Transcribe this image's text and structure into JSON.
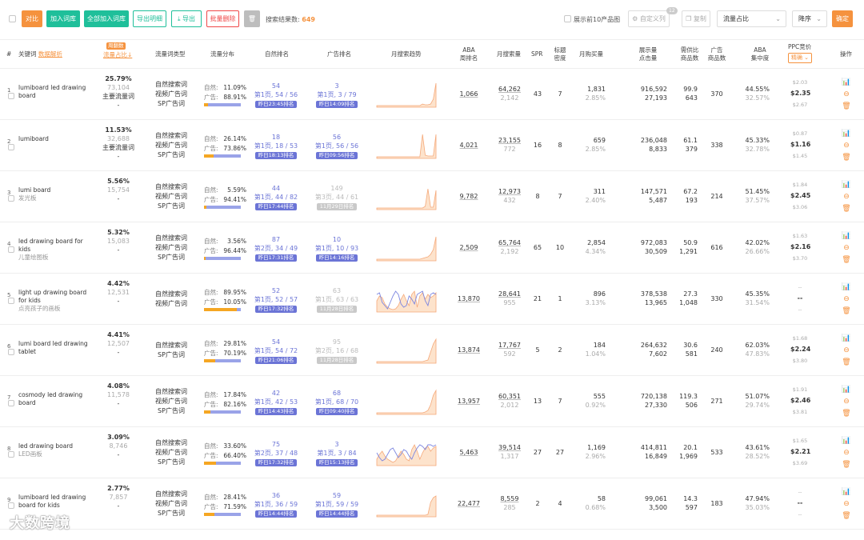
{
  "toolbar": {
    "compare": "对比",
    "add_lib": "加入词库",
    "add_all_lib": "全部加入词库",
    "export_detail": "导出明细",
    "export": "导出",
    "batch_delete": "批量删除",
    "result_label": "搜索结果数:",
    "result_count": "649",
    "top10_label": "展示前10产品图",
    "custom_col": "自定义列",
    "custom_col_badge": "12",
    "copy": "复制",
    "sort_field": "流量占比",
    "sort_order": "降序",
    "confirm": "确定"
  },
  "header": {
    "idx": "#",
    "keyword": "关键词",
    "keyword_link": "数据解析",
    "share_badge": "周翻数",
    "share": "流量占比",
    "type": "流量词类型",
    "dist": "流量分布",
    "organic_rank": "自然排名",
    "ad_rank": "广告排名",
    "trend": "月搜索趋势",
    "aba": "ABA\n周排名",
    "monthly_search": "月搜索量",
    "spr": "SPR",
    "title_density": "标题\n密度",
    "monthly_buy": "月购买量",
    "impr_click": "展示量\n点击量",
    "supply_ratio": "需供比\n商品数",
    "ad_products": "广告\n商品数",
    "aba_conc": "ABA\n集中度",
    "ppc": "PPC竞价",
    "ppc_select": "精确",
    "ops": "操作"
  },
  "labels": {
    "organic": "自然:",
    "ad": "广告:"
  },
  "rows": [
    {
      "idx": "1",
      "kw": "lumiboard led drawing board",
      "kw_cn": "",
      "share": "25.79%",
      "share_n": "73,104",
      "share_tag": "主要流量词",
      "share_dash": "-",
      "types": [
        "自然搜索词",
        "视频广告词",
        "SP广告词"
      ],
      "org_pct": "11.09%",
      "ad_pct": "88.91%",
      "org_frac": 0.1109,
      "org_rank": "54",
      "org_page": "第1页, 54 / 56",
      "org_tag": "昨日23:45排名",
      "org_grey": false,
      "ad_rank": "3",
      "ad_page": "第1页, 3 / 79",
      "ad_tag": "昨日14:09排名",
      "ad_grey": false,
      "trend": [
        2,
        2,
        2,
        2,
        2,
        2,
        2,
        2,
        2,
        2,
        2,
        2,
        2,
        2,
        2,
        2,
        2,
        4,
        3,
        3,
        4,
        10,
        30
      ],
      "trend_blue": null,
      "aba": "1,066",
      "ms": "64,262",
      "ms2": "2,142",
      "spr": "43",
      "td": "7",
      "buy": "1,831",
      "buy2": "2.85%",
      "impr": "916,592",
      "click": "27,193",
      "ratio": "99.9",
      "goods": "643",
      "adg": "370",
      "conc": "44.55%",
      "conc2": "32.57%",
      "ppc1": "$2.03",
      "ppc2": "$2.35",
      "ppc3": "$2.67"
    },
    {
      "idx": "2",
      "kw": "lumiboard",
      "kw_cn": "",
      "share": "11.53%",
      "share_n": "32,688",
      "share_tag": "主要流量词",
      "share_dash": "-",
      "types": [
        "自然搜索词",
        "视频广告词",
        "SP广告词"
      ],
      "org_pct": "26.14%",
      "ad_pct": "73.86%",
      "org_frac": 0.2614,
      "org_rank": "18",
      "org_page": "第1页, 18 / 53",
      "org_tag": "昨日18:13排名",
      "org_grey": false,
      "ad_rank": "56",
      "ad_page": "第1页, 56 / 56",
      "ad_tag": "昨日09:56排名",
      "ad_grey": false,
      "trend": [
        2,
        2,
        2,
        2,
        2,
        2,
        2,
        2,
        2,
        2,
        2,
        2,
        2,
        2,
        2,
        2,
        2,
        30,
        4,
        3,
        3,
        3,
        30
      ],
      "trend_blue": null,
      "aba": "4,021",
      "ms": "23,155",
      "ms2": "772",
      "spr": "16",
      "td": "8",
      "buy": "659",
      "buy2": "2.85%",
      "impr": "236,048",
      "click": "8,833",
      "ratio": "61.1",
      "goods": "379",
      "adg": "338",
      "conc": "45.33%",
      "conc2": "32.78%",
      "ppc1": "$0.87",
      "ppc2": "$1.16",
      "ppc3": "$1.45"
    },
    {
      "idx": "3",
      "kw": "lumi board",
      "kw_cn": "发光板",
      "share": "5.56%",
      "share_n": "15,754",
      "share_tag": "",
      "share_dash": "-",
      "types": [
        "自然搜索词",
        "视频广告词",
        "SP广告词"
      ],
      "org_pct": "5.59%",
      "ad_pct": "94.41%",
      "org_frac": 0.0559,
      "org_rank": "44",
      "org_page": "第1页, 44 / 82",
      "org_tag": "昨日17:44排名",
      "org_grey": false,
      "ad_rank": "149",
      "ad_page": "第3页, 44 / 61",
      "ad_tag": "11月29日排名",
      "ad_grey": true,
      "trend": [
        2,
        2,
        2,
        2,
        2,
        2,
        2,
        2,
        2,
        2,
        2,
        2,
        2,
        2,
        2,
        2,
        2,
        2,
        4,
        26,
        3,
        3,
        24
      ],
      "trend_blue": null,
      "aba": "9,782",
      "ms": "12,973",
      "ms2": "432",
      "spr": "8",
      "td": "7",
      "buy": "311",
      "buy2": "2.40%",
      "impr": "147,571",
      "click": "5,487",
      "ratio": "67.2",
      "goods": "193",
      "adg": "214",
      "conc": "51.45%",
      "conc2": "37.57%",
      "ppc1": "$1.84",
      "ppc2": "$2.45",
      "ppc3": "$3.06"
    },
    {
      "idx": "4",
      "kw": "led drawing board for kids",
      "kw_cn": "儿童绘图板",
      "share": "5.32%",
      "share_n": "15,083",
      "share_tag": "",
      "share_dash": "-",
      "types": [
        "自然搜索词",
        "视频广告词",
        "SP广告词"
      ],
      "org_pct": "3.56%",
      "ad_pct": "96.44%",
      "org_frac": 0.0356,
      "org_rank": "87",
      "org_page": "第2页, 34 / 49",
      "org_tag": "昨日17:31排名",
      "org_grey": false,
      "ad_rank": "10",
      "ad_page": "第1页, 10 / 93",
      "ad_tag": "昨日14:16排名",
      "ad_grey": false,
      "trend": [
        2,
        2,
        2,
        2,
        2,
        2,
        2,
        2,
        2,
        2,
        2,
        2,
        2,
        2,
        2,
        2,
        2,
        3,
        4,
        5,
        8,
        14,
        30
      ],
      "trend_blue": null,
      "aba": "2,509",
      "ms": "65,764",
      "ms2": "2,192",
      "spr": "65",
      "td": "10",
      "buy": "2,854",
      "buy2": "4.34%",
      "impr": "972,083",
      "click": "30,509",
      "ratio": "50.9",
      "goods": "1,291",
      "adg": "616",
      "conc": "42.02%",
      "conc2": "26.66%",
      "ppc1": "$1.63",
      "ppc2": "$2.16",
      "ppc3": "$3.70"
    },
    {
      "idx": "5",
      "kw": "light up drawing board for kids",
      "kw_cn": "点亮孩子的画板",
      "share": "4.42%",
      "share_n": "12,531",
      "share_tag": "",
      "share_dash": "-",
      "types": [
        "自然搜索词",
        "视频广告词"
      ],
      "org_pct": "89.95%",
      "ad_pct": "10.05%",
      "org_frac": 0.8995,
      "org_rank": "52",
      "org_page": "第1页, 52 / 57",
      "org_tag": "昨日17:32排名",
      "org_grey": false,
      "ad_rank": "63",
      "ad_page": "第1页, 63 / 63",
      "ad_tag": "11月28日排名",
      "ad_grey": true,
      "trend": [
        14,
        20,
        18,
        10,
        6,
        4,
        3,
        4,
        8,
        16,
        22,
        14,
        8,
        22,
        26,
        6,
        20,
        24,
        16,
        22,
        18,
        20,
        24
      ],
      "trend_blue": [
        22,
        24,
        12,
        8,
        4,
        12,
        20,
        26,
        22,
        10,
        6,
        8,
        20,
        16,
        10,
        22,
        24,
        26,
        14,
        8,
        22,
        24,
        22
      ],
      "aba": "13,870",
      "ms": "28,641",
      "ms2": "955",
      "spr": "21",
      "td": "1",
      "buy": "896",
      "buy2": "3.13%",
      "impr": "378,538",
      "click": "13,965",
      "ratio": "27.3",
      "goods": "1,048",
      "adg": "330",
      "conc": "45.35%",
      "conc2": "31.54%",
      "ppc1": "--",
      "ppc2": "--",
      "ppc3": "--"
    },
    {
      "idx": "6",
      "kw": "lumi board led drawing tablet",
      "kw_cn": "",
      "share": "4.41%",
      "share_n": "12,507",
      "share_tag": "",
      "share_dash": "-",
      "types": [
        "自然搜索词",
        "SP广告词"
      ],
      "org_pct": "29.81%",
      "ad_pct": "70.19%",
      "org_frac": 0.2981,
      "org_rank": "54",
      "org_page": "第1页, 54 / 72",
      "org_tag": "昨日21:06排名",
      "org_grey": false,
      "ad_rank": "95",
      "ad_page": "第2页, 16 / 68",
      "ad_tag": "11月28日排名",
      "ad_grey": true,
      "trend": [
        2,
        2,
        2,
        2,
        2,
        2,
        2,
        2,
        2,
        2,
        2,
        2,
        2,
        2,
        2,
        2,
        2,
        2,
        3,
        4,
        14,
        24,
        30
      ],
      "trend_blue": null,
      "aba": "13,874",
      "ms": "17,767",
      "ms2": "592",
      "spr": "5",
      "td": "2",
      "buy": "184",
      "buy2": "1.04%",
      "impr": "264,632",
      "click": "7,602",
      "ratio": "30.6",
      "goods": "581",
      "adg": "240",
      "conc": "62.03%",
      "conc2": "47.83%",
      "ppc1": "$1.68",
      "ppc2": "$2.24",
      "ppc3": "$3.80"
    },
    {
      "idx": "7",
      "kw": "cosmody led drawing board",
      "kw_cn": "",
      "share": "4.08%",
      "share_n": "11,578",
      "share_tag": "",
      "share_dash": "-",
      "types": [
        "自然搜索词",
        "视频广告词",
        "SP广告词"
      ],
      "org_pct": "17.84%",
      "ad_pct": "82.16%",
      "org_frac": 0.1784,
      "org_rank": "42",
      "org_page": "第1页, 42 / 53",
      "org_tag": "昨日14:43排名",
      "org_grey": false,
      "ad_rank": "68",
      "ad_page": "第1页, 68 / 70",
      "ad_tag": "昨日09:40排名",
      "ad_grey": false,
      "trend": [
        2,
        2,
        2,
        2,
        2,
        2,
        2,
        2,
        2,
        2,
        2,
        2,
        2,
        2,
        2,
        2,
        2,
        2,
        3,
        5,
        12,
        24,
        30
      ],
      "trend_blue": null,
      "aba": "13,957",
      "ms": "60,351",
      "ms2": "2,012",
      "spr": "13",
      "td": "7",
      "buy": "555",
      "buy2": "0.92%",
      "impr": "720,138",
      "click": "27,330",
      "ratio": "119.3",
      "goods": "506",
      "adg": "271",
      "conc": "51.07%",
      "conc2": "29.74%",
      "ppc1": "$1.91",
      "ppc2": "$2.46",
      "ppc3": "$3.81"
    },
    {
      "idx": "8",
      "kw": "led drawing board",
      "kw_cn": "LED画板",
      "share": "3.09%",
      "share_n": "8,746",
      "share_tag": "",
      "share_dash": "-",
      "types": [
        "自然搜索词",
        "视频广告词",
        "SP广告词"
      ],
      "org_pct": "33.60%",
      "ad_pct": "66.40%",
      "org_frac": 0.336,
      "org_rank": "75",
      "org_page": "第2页, 37 / 48",
      "org_tag": "昨日17:32排名",
      "org_grey": false,
      "ad_rank": "3",
      "ad_page": "第1页, 3 / 84",
      "ad_tag": "昨日15:13排名",
      "ad_grey": false,
      "trend": [
        8,
        14,
        18,
        12,
        8,
        6,
        4,
        6,
        12,
        18,
        14,
        8,
        6,
        20,
        26,
        18,
        8,
        16,
        22,
        24,
        18,
        22,
        24
      ],
      "trend_blue": [
        16,
        10,
        6,
        8,
        14,
        20,
        22,
        16,
        10,
        14,
        20,
        18,
        12,
        8,
        16,
        22,
        26,
        24,
        20,
        26,
        26,
        24,
        26
      ],
      "aba": "5,463",
      "ms": "39,514",
      "ms2": "1,317",
      "spr": "27",
      "td": "27",
      "buy": "1,169",
      "buy2": "2.96%",
      "impr": "414,811",
      "click": "16,849",
      "ratio": "20.1",
      "goods": "1,969",
      "adg": "533",
      "conc": "43.61%",
      "conc2": "28.52%",
      "ppc1": "$1.65",
      "ppc2": "$2.21",
      "ppc3": "$3.69"
    },
    {
      "idx": "9",
      "kw": "lumiboard led drawing board for kids",
      "kw_cn": "",
      "share": "2.77%",
      "share_n": "7,857",
      "share_tag": "",
      "share_dash": "-",
      "types": [
        "自然搜索词",
        "视频广告词",
        "SP广告词"
      ],
      "org_pct": "28.41%",
      "ad_pct": "71.59%",
      "org_frac": 0.2841,
      "org_rank": "36",
      "org_page": "第1页, 36 / 59",
      "org_tag": "昨日14:44排名",
      "org_grey": false,
      "ad_rank": "59",
      "ad_page": "第1页, 59 / 59",
      "ad_tag": "昨日14:44排名",
      "ad_grey": false,
      "trend": [
        2,
        2,
        2,
        2,
        2,
        2,
        2,
        2,
        2,
        2,
        2,
        2,
        2,
        2,
        2,
        2,
        2,
        2,
        2,
        3,
        18,
        24,
        26
      ],
      "trend_blue": null,
      "aba": "22,477",
      "ms": "8,559",
      "ms2": "285",
      "spr": "2",
      "td": "4",
      "buy": "58",
      "buy2": "0.68%",
      "impr": "99,061",
      "click": "3,500",
      "ratio": "14.3",
      "goods": "597",
      "adg": "183",
      "conc": "47.94%",
      "conc2": "35.03%",
      "ppc1": "--",
      "ppc2": "--",
      "ppc3": "--"
    }
  ],
  "watermark": "大数跨境"
}
